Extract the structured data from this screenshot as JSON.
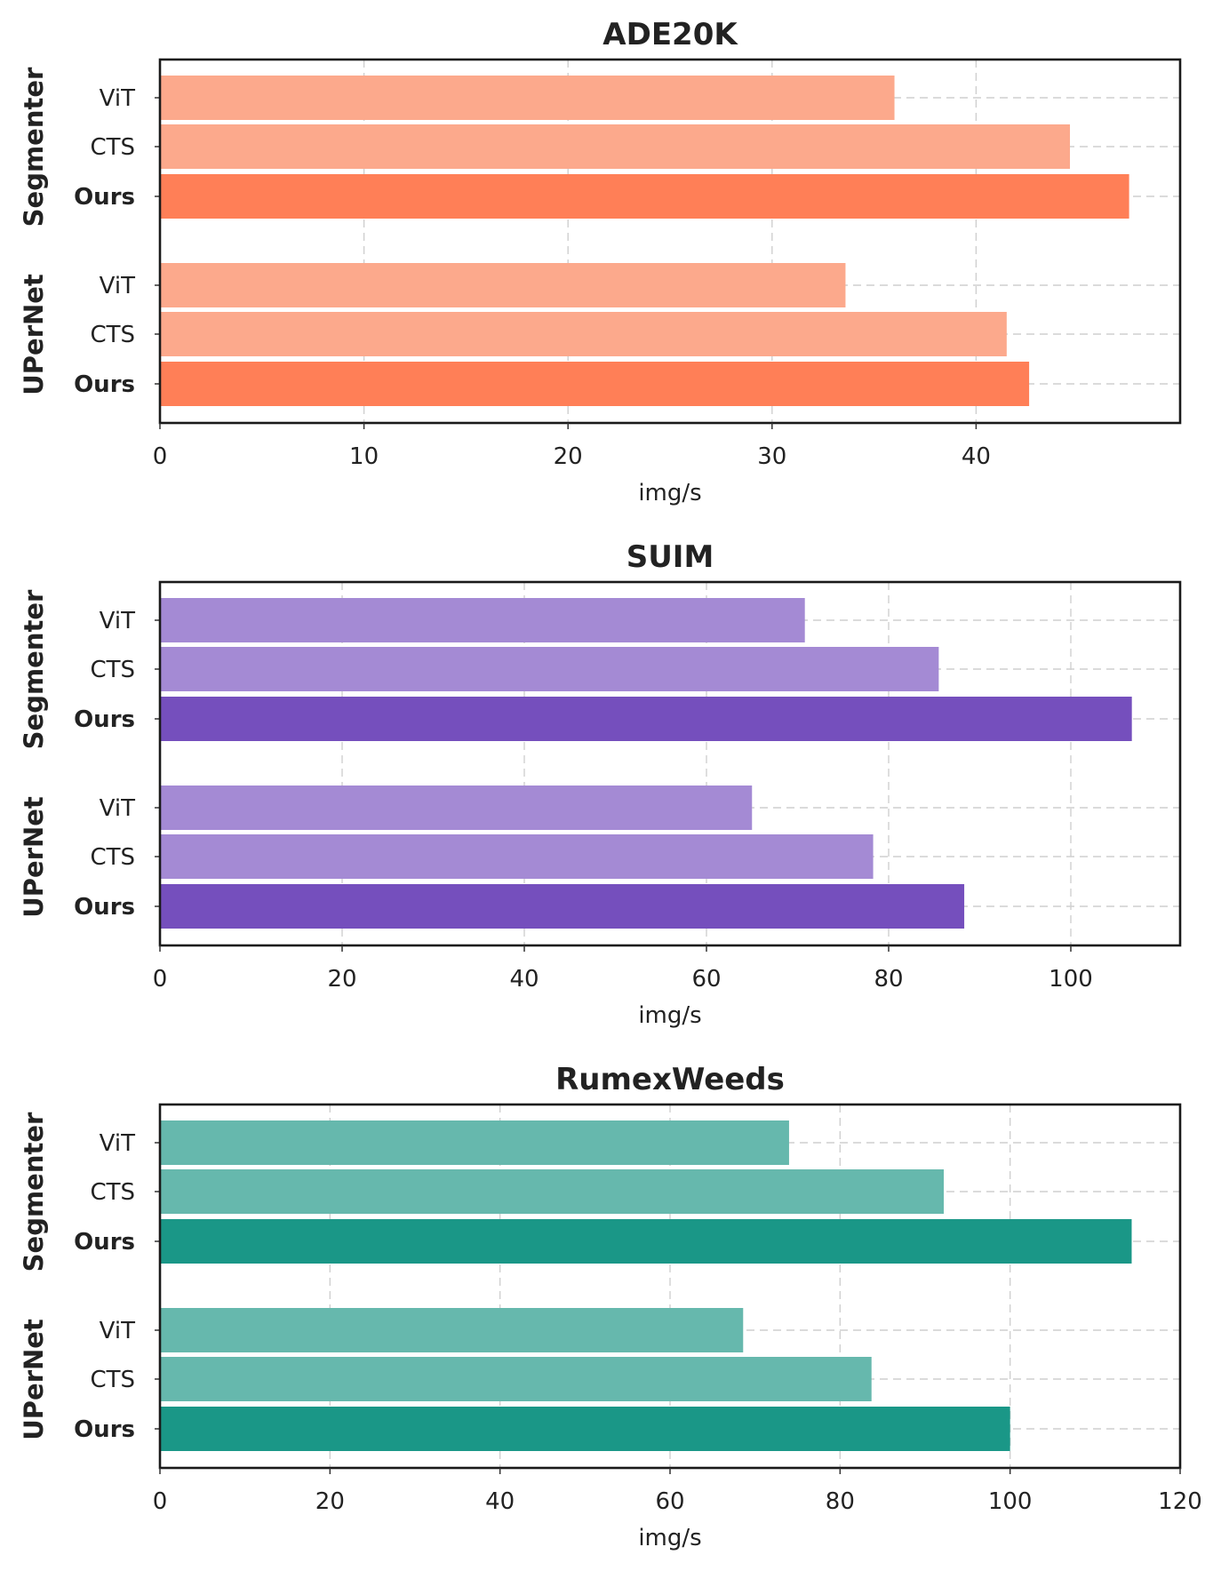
{
  "chart_data": [
    {
      "type": "bar",
      "orientation": "horizontal",
      "title": "ADE20K",
      "xlabel": "img/s",
      "xlim": [
        0,
        50
      ],
      "xticks": [
        0,
        10,
        20,
        30,
        40
      ],
      "colors": {
        "baseline": "#fca98c",
        "ours": "#ff7f57"
      },
      "groups": [
        {
          "name": "Segmenter",
          "bars": [
            {
              "label": "ViT",
              "value": 36.0
            },
            {
              "label": "CTS",
              "value": 44.6
            },
            {
              "label": "Ours",
              "value": 47.5
            }
          ]
        },
        {
          "name": "UPerNet",
          "bars": [
            {
              "label": "ViT",
              "value": 33.6
            },
            {
              "label": "CTS",
              "value": 41.5
            },
            {
              "label": "Ours",
              "value": 42.6
            }
          ]
        }
      ]
    },
    {
      "type": "bar",
      "orientation": "horizontal",
      "title": "SUIM",
      "xlabel": "img/s",
      "xlim": [
        0,
        112
      ],
      "xticks": [
        0,
        20,
        40,
        60,
        80,
        100
      ],
      "colors": {
        "baseline": "#a48ad4",
        "ours": "#754fbd"
      },
      "groups": [
        {
          "name": "Segmenter",
          "bars": [
            {
              "label": "ViT",
              "value": 70.8
            },
            {
              "label": "CTS",
              "value": 85.5
            },
            {
              "label": "Ours",
              "value": 106.7
            }
          ]
        },
        {
          "name": "UPerNet",
          "bars": [
            {
              "label": "ViT",
              "value": 65.0
            },
            {
              "label": "CTS",
              "value": 78.3
            },
            {
              "label": "Ours",
              "value": 88.3
            }
          ]
        }
      ]
    },
    {
      "type": "bar",
      "orientation": "horizontal",
      "title": "RumexWeeds",
      "xlabel": "img/s",
      "xlim": [
        0,
        120
      ],
      "xticks": [
        0,
        20,
        40,
        60,
        80,
        100,
        120
      ],
      "colors": {
        "baseline": "#66b8ad",
        "ours": "#1a9787"
      },
      "groups": [
        {
          "name": "Segmenter",
          "bars": [
            {
              "label": "ViT",
              "value": 74.0
            },
            {
              "label": "CTS",
              "value": 92.2
            },
            {
              "label": "Ours",
              "value": 114.3
            }
          ]
        },
        {
          "name": "UPerNet",
          "bars": [
            {
              "label": "ViT",
              "value": 68.6
            },
            {
              "label": "CTS",
              "value": 83.7
            },
            {
              "label": "Ours",
              "value": 100.0
            }
          ]
        }
      ]
    }
  ]
}
